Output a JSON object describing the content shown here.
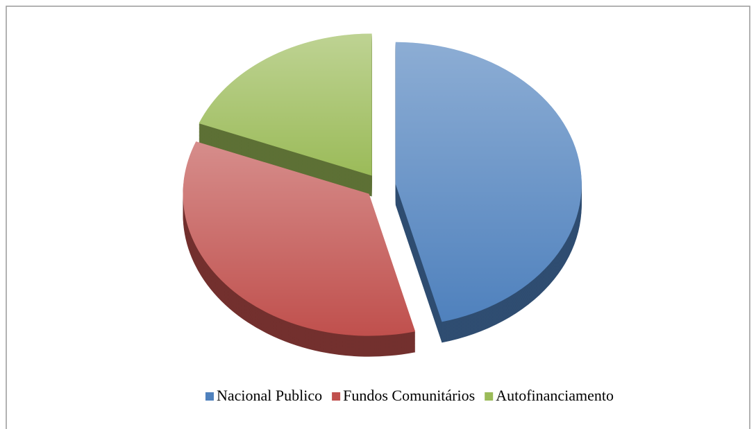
{
  "chart_data": {
    "type": "pie",
    "categories": [
      "Nacional Publico",
      "Fundos Comunitários",
      "Autofinanciamento"
    ],
    "values": [
      46,
      35,
      19
    ],
    "colors": [
      "#4f81bd",
      "#c0504d",
      "#9bbb59"
    ],
    "legend": "bottom"
  }
}
